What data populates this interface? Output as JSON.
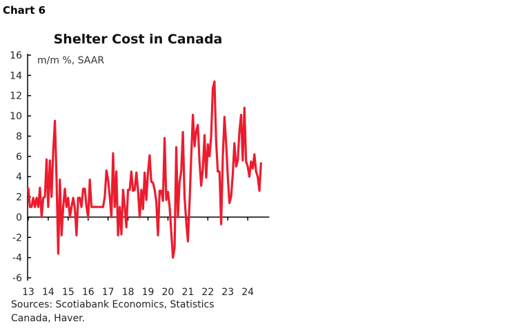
{
  "chart_label": "Chart 6",
  "sources": "Sources: Scotiabank Economics, Statistics Canada, Haver.",
  "chart_data": {
    "type": "line",
    "title": "Shelter Cost in Canada",
    "unit_label": "m/m %, SAAR",
    "xlabel": "",
    "ylabel": "",
    "ylim": [
      -6,
      16
    ],
    "yticks": [
      16,
      14,
      12,
      10,
      8,
      6,
      4,
      2,
      0,
      -2,
      -4,
      -6
    ],
    "xtick_labels": [
      "13",
      "14",
      "15",
      "16",
      "17",
      "18",
      "19",
      "20",
      "21",
      "22",
      "23",
      "24"
    ],
    "x_start": "2013-01",
    "frequency": "monthly",
    "grid": false,
    "line_color": "#EC1C2E",
    "series": [
      {
        "values": [
          2.9,
          1.0,
          1.0,
          1.9,
          1.0,
          1.9,
          1.0,
          2.9,
          0,
          1.9,
          2.0,
          5.7,
          1.0,
          5.6,
          2.0,
          6.6,
          9.5,
          3.7,
          -3.6,
          3.7,
          -1.8,
          1.0,
          2.8,
          1.0,
          1.9,
          0,
          1.0,
          1.9,
          0.9,
          -1.8,
          1.9,
          1.9,
          1.0,
          2.8,
          2.8,
          1.0,
          0,
          3.7,
          1.0,
          1.0,
          1.0,
          1.0,
          1.0,
          1.0,
          1.0,
          1.0,
          2.0,
          4.6,
          3.7,
          2.0,
          0,
          6.3,
          1.0,
          4.5,
          -1.8,
          1.0,
          -1.7,
          2.7,
          1.0,
          -1.0,
          2.7,
          2.7,
          4.5,
          2.6,
          2.7,
          4.4,
          2.6,
          0,
          2.7,
          0.8,
          4.4,
          1.7,
          4.4,
          6.1,
          3.5,
          3.4,
          2.7,
          1.5,
          -1.8,
          2.6,
          2.6,
          1.6,
          7.8,
          1.7,
          2.5,
          1.0,
          -1.5,
          -4.0,
          -3.0,
          6.9,
          0,
          3.5,
          4.5,
          8.4,
          2.0,
          -0.5,
          -2.4,
          1.5,
          6.0,
          10.1,
          7.0,
          8.5,
          9.1,
          5.5,
          3.1,
          4.8,
          8.1,
          3.9,
          7.2,
          6.0,
          8.0,
          12.7,
          13.4,
          7.5,
          4.5,
          4.5,
          -0.7,
          6.0,
          9.9,
          7.3,
          4.0,
          1.4,
          2.0,
          4.2,
          7.3,
          5.0,
          5.6,
          8.5,
          10.1,
          5.6,
          10.8,
          5.5,
          5.0,
          4.0,
          5.5,
          4.8,
          6.2,
          4.5,
          4.0,
          2.6,
          5.4
        ]
      }
    ]
  }
}
